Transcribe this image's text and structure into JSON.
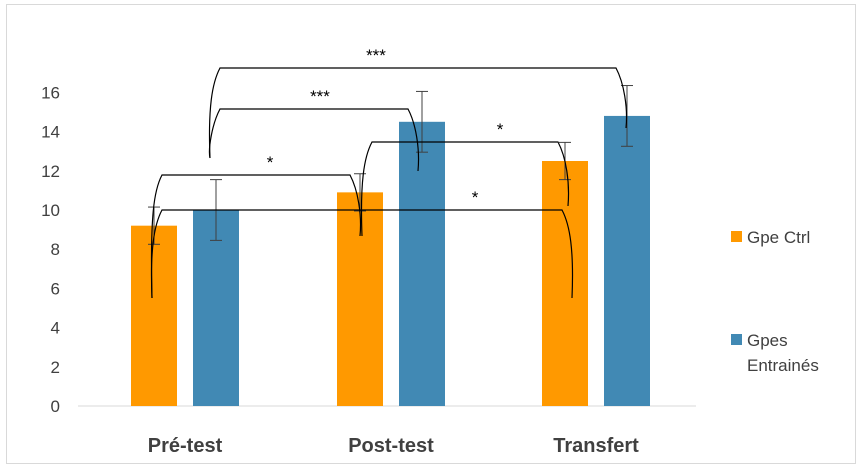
{
  "chart_data": {
    "type": "bar",
    "categories": [
      "Pré-test",
      "Post-test",
      "Transfert"
    ],
    "series": [
      {
        "name": "Gpe Ctrl",
        "values": [
          9.2,
          10.9,
          12.5
        ],
        "errors": [
          0.95,
          0.95,
          0.95
        ],
        "color": "#ff9900"
      },
      {
        "name": "Gpes Entrainés",
        "values": [
          10.0,
          14.5,
          14.8
        ],
        "errors": [
          1.55,
          1.55,
          1.55
        ],
        "color": "#4189b4"
      }
    ],
    "ylim": [
      0,
      16
    ],
    "yticks": [
      0,
      2,
      4,
      6,
      8,
      10,
      12,
      14,
      16
    ],
    "grid": false,
    "legend": "right",
    "annotations": [
      "*",
      "***",
      "***",
      "*",
      "*"
    ]
  },
  "legend_lines": [
    [
      "Gpe Ctrl"
    ],
    [
      "Gpes",
      "Entrainés"
    ]
  ]
}
